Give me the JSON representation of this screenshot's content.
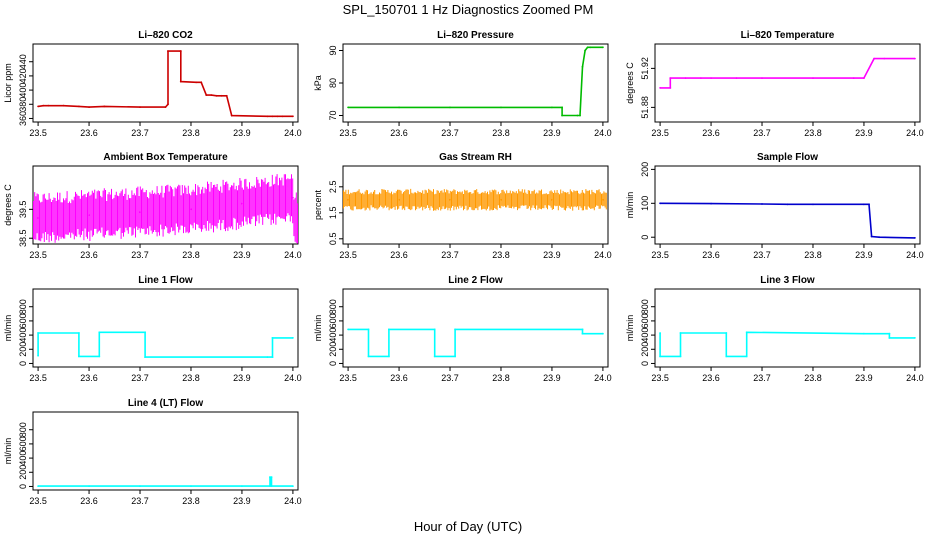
{
  "figure": {
    "title": "SPL_150701  1 Hz Diagnostics Zoomed PM",
    "xlabel": "Hour of Day (UTC)"
  },
  "chart_data": [
    {
      "type": "line",
      "title": "Li–820 CO2",
      "ylabel": "Licor ppm",
      "color": "#cc0000",
      "xlim": [
        23.49,
        24.01
      ],
      "ylim": [
        355,
        465
      ],
      "xticks": [
        "23.5",
        "23.6",
        "23.7",
        "23.8",
        "23.9",
        "24.0"
      ],
      "yticks": [
        "360",
        "380",
        "400",
        "420",
        "440"
      ],
      "series": [
        {
          "x": [
            23.5,
            23.51,
            23.52,
            23.55,
            23.58,
            23.6,
            23.63,
            23.7,
            23.75,
            23.755,
            23.755,
            23.779,
            23.78,
            23.78,
            23.81,
            23.82,
            23.82,
            23.83,
            23.84,
            23.85,
            23.86,
            23.87,
            23.88,
            23.95,
            23.96,
            23.97,
            23.98,
            24.0
          ],
          "values": [
            377,
            378,
            378,
            378,
            377,
            376,
            377,
            376,
            376,
            380,
            455,
            455,
            455,
            412,
            411,
            411,
            411,
            393,
            393,
            392,
            392,
            392,
            364,
            363,
            363,
            363,
            363,
            363
          ]
        }
      ]
    },
    {
      "type": "line",
      "title": "Li–820 Pressure",
      "ylabel": "kPa",
      "color": "#00bb00",
      "xlim": [
        23.49,
        24.01
      ],
      "ylim": [
        68,
        92
      ],
      "xticks": [
        "23.5",
        "23.6",
        "23.7",
        "23.8",
        "23.9",
        "24.0"
      ],
      "yticks": [
        "70",
        "80",
        "90"
      ],
      "series": [
        {
          "x": [
            23.5,
            23.6,
            23.7,
            23.8,
            23.9,
            23.92,
            23.92,
            23.95,
            23.955,
            23.96,
            23.965,
            23.97,
            23.975,
            24.0
          ],
          "values": [
            72.5,
            72.5,
            72.5,
            72.5,
            72.5,
            72.5,
            70,
            70,
            70,
            85,
            90,
            91,
            91,
            91
          ]
        }
      ]
    },
    {
      "type": "line",
      "title": "Li–820 Temperature",
      "ylabel": "degrees C",
      "color": "#ff00ff",
      "xlim": [
        23.49,
        24.01
      ],
      "ylim": [
        51.865,
        51.945
      ],
      "xticks": [
        "23.5",
        "23.6",
        "23.7",
        "23.8",
        "23.9",
        "24.0"
      ],
      "yticks": [
        "51.88",
        "51.92"
      ],
      "series": [
        {
          "x": [
            23.5,
            23.52,
            23.52,
            23.55,
            23.58,
            23.6,
            23.65,
            23.7,
            23.8,
            23.88,
            23.9,
            23.92,
            23.94,
            24.0
          ],
          "values": [
            51.9,
            51.9,
            51.91,
            51.91,
            51.91,
            51.91,
            51.91,
            51.91,
            51.91,
            51.91,
            51.91,
            51.93,
            51.93,
            51.93
          ]
        }
      ]
    },
    {
      "type": "line",
      "title": "Ambient Box Temperature",
      "ylabel": "degrees C",
      "color": "#ff00ff",
      "xlim": [
        23.49,
        24.01
      ],
      "ylim": [
        38.3,
        41.0
      ],
      "xticks": [
        "23.5",
        "23.6",
        "23.7",
        "23.8",
        "23.9",
        "24.0"
      ],
      "yticks": [
        "38.5",
        "39.5"
      ],
      "series": [
        {
          "x": [
            23.5,
            23.6,
            23.7,
            23.8,
            23.9,
            24.0
          ],
          "values": [
            39.2,
            39.3,
            39.4,
            39.5,
            39.7,
            39.9
          ]
        }
      ]
    },
    {
      "type": "line",
      "title": "Gas Stream RH",
      "ylabel": "percent",
      "color": "#ff9900",
      "xlim": [
        23.49,
        24.01
      ],
      "ylim": [
        0.3,
        3.3
      ],
      "xticks": [
        "23.5",
        "23.6",
        "23.7",
        "23.8",
        "23.9",
        "24.0"
      ],
      "yticks": [
        "0.5",
        "1.5",
        "2.5"
      ],
      "series": [
        {
          "x": [
            23.5,
            23.6,
            23.7,
            23.8,
            23.9,
            24.0
          ],
          "values": [
            2.0,
            2.0,
            2.0,
            2.0,
            2.0,
            2.0
          ]
        }
      ]
    },
    {
      "type": "line",
      "title": "Sample Flow",
      "ylabel": "ml/min",
      "color": "#0000cc",
      "xlim": [
        23.49,
        24.01
      ],
      "ylim": [
        -20,
        210
      ],
      "xticks": [
        "23.5",
        "23.6",
        "23.7",
        "23.8",
        "23.9",
        "24.0"
      ],
      "yticks": [
        "0",
        "100",
        "200"
      ],
      "series": [
        {
          "x": [
            23.5,
            23.6,
            23.7,
            23.75,
            23.8,
            23.9,
            23.91,
            23.915,
            23.93,
            24.0
          ],
          "values": [
            100,
            99,
            98,
            97,
            97,
            97,
            97,
            2,
            0,
            -2
          ]
        }
      ]
    },
    {
      "type": "line",
      "title": "Line 1 Flow",
      "ylabel": "ml/min",
      "color": "#00ffff",
      "xlim": [
        23.49,
        24.01
      ],
      "ylim": [
        -50,
        1050
      ],
      "xticks": [
        "23.5",
        "23.6",
        "23.7",
        "23.8",
        "23.9",
        "24.0"
      ],
      "yticks": [
        "0",
        "200",
        "400",
        "600",
        "800"
      ],
      "series": [
        {
          "x": [
            23.5,
            23.5,
            23.58,
            23.58,
            23.62,
            23.62,
            23.71,
            23.71,
            23.95,
            23.96,
            23.96,
            24.0
          ],
          "values": [
            110,
            430,
            430,
            100,
            100,
            440,
            440,
            90,
            90,
            90,
            360,
            360
          ]
        }
      ]
    },
    {
      "type": "line",
      "title": "Line 2 Flow",
      "ylabel": "ml/min",
      "color": "#00ffff",
      "xlim": [
        23.49,
        24.01
      ],
      "ylim": [
        -50,
        1050
      ],
      "xticks": [
        "23.5",
        "23.6",
        "23.7",
        "23.8",
        "23.9",
        "24.0"
      ],
      "yticks": [
        "0",
        "200",
        "400",
        "600",
        "800"
      ],
      "series": [
        {
          "x": [
            23.5,
            23.54,
            23.54,
            23.58,
            23.58,
            23.67,
            23.67,
            23.71,
            23.71,
            23.96,
            23.96,
            24.0
          ],
          "values": [
            480,
            480,
            100,
            100,
            480,
            480,
            100,
            100,
            480,
            480,
            420,
            420
          ]
        }
      ]
    },
    {
      "type": "line",
      "title": "Line 3 Flow",
      "ylabel": "ml/min",
      "color": "#00ffff",
      "xlim": [
        23.49,
        24.01
      ],
      "ylim": [
        -50,
        1050
      ],
      "xticks": [
        "23.5",
        "23.6",
        "23.7",
        "23.8",
        "23.9",
        "24.0"
      ],
      "yticks": [
        "0",
        "200",
        "400",
        "600",
        "800"
      ],
      "series": [
        {
          "x": [
            23.5,
            23.5,
            23.54,
            23.54,
            23.63,
            23.63,
            23.67,
            23.67,
            23.9,
            23.95,
            23.95,
            24.0
          ],
          "values": [
            430,
            100,
            100,
            430,
            430,
            100,
            100,
            440,
            420,
            420,
            360,
            360
          ]
        }
      ]
    },
    {
      "type": "line",
      "title": "Line 4 (LT) Flow",
      "ylabel": "ml/min",
      "color": "#00ffff",
      "xlim": [
        23.49,
        24.01
      ],
      "ylim": [
        -50,
        1050
      ],
      "xticks": [
        "23.5",
        "23.6",
        "23.7",
        "23.8",
        "23.9",
        "24.0"
      ],
      "yticks": [
        "0",
        "200",
        "400",
        "600",
        "800"
      ],
      "series": [
        {
          "x": [
            23.5,
            23.6,
            23.7,
            23.8,
            23.9,
            23.955,
            23.955,
            23.958,
            23.958,
            24.0
          ],
          "values": [
            5,
            5,
            5,
            5,
            5,
            5,
            130,
            130,
            5,
            5
          ]
        }
      ]
    }
  ]
}
